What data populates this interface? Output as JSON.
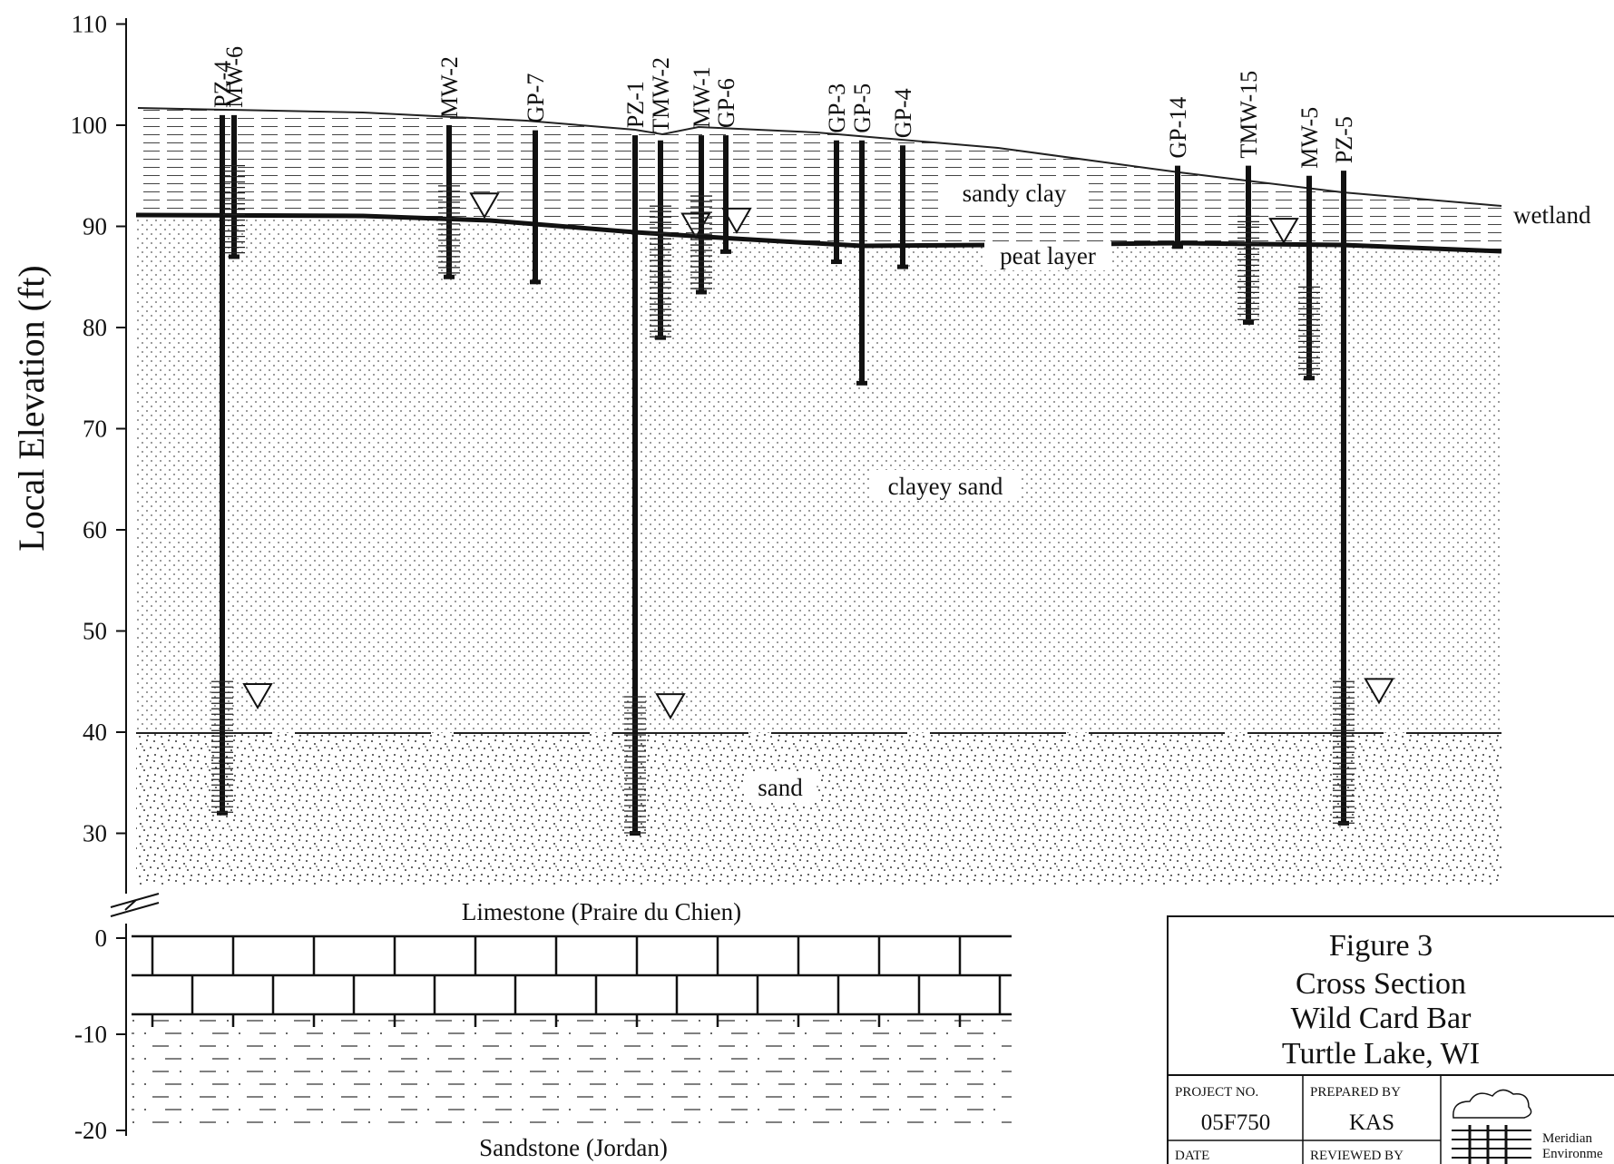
{
  "diagram": {
    "y_axis_label": "Local Elevation (ft)",
    "upper_ticks": [
      "110",
      "100",
      "90",
      "80",
      "70",
      "60",
      "50",
      "40",
      "30"
    ],
    "lower_ticks": [
      "0",
      "-10",
      "-20"
    ],
    "units": {
      "sandy_clay": "sandy clay",
      "peat_layer": "peat layer",
      "clayey_sand": "clayey sand",
      "sand": "sand",
      "wetland": "wetland",
      "limestone": "Limestone (Praire du Chien)",
      "sandstone": "Sandstone (Jordan)"
    },
    "wells": [
      {
        "id": "PZ-4",
        "top_elev": 101,
        "bottom_elev": 32,
        "screen_top": 45,
        "water_level": 43.5
      },
      {
        "id": "MW-6",
        "top_elev": 101,
        "bottom_elev": 87,
        "screen_top": 96
      },
      {
        "id": "MW-2",
        "top_elev": 100,
        "bottom_elev": 85,
        "screen_top": 94,
        "water_level": 92
      },
      {
        "id": "GP-7",
        "top_elev": 99.5,
        "bottom_elev": 84.5
      },
      {
        "id": "PZ-1",
        "top_elev": 99,
        "bottom_elev": 30,
        "screen_top": 43.5,
        "water_level": 42.5
      },
      {
        "id": "TMW-2",
        "top_elev": 98.5,
        "bottom_elev": 79,
        "screen_top": 92,
        "water_level": 90
      },
      {
        "id": "MW-1",
        "top_elev": 99,
        "bottom_elev": 83.5,
        "screen_top": 93,
        "water_level": 90.5
      },
      {
        "id": "GP-6",
        "top_elev": 99,
        "bottom_elev": 87.5
      },
      {
        "id": "GP-3",
        "top_elev": 98.5,
        "bottom_elev": 86.5
      },
      {
        "id": "GP-5",
        "top_elev": 98.5,
        "bottom_elev": 74.5
      },
      {
        "id": "GP-4",
        "top_elev": 98,
        "bottom_elev": 86
      },
      {
        "id": "GP-14",
        "top_elev": 96,
        "bottom_elev": 88
      },
      {
        "id": "TMW-15",
        "top_elev": 96,
        "bottom_elev": 80.5,
        "screen_top": 91,
        "water_level": 89.5
      },
      {
        "id": "MW-5",
        "top_elev": 95,
        "bottom_elev": 75,
        "screen_top": 84
      },
      {
        "id": "PZ-5",
        "top_elev": 95.5,
        "bottom_elev": 31,
        "screen_top": 45,
        "water_level": 44
      }
    ]
  },
  "title_block": {
    "title_lines": [
      "Figure 3",
      "Cross Section",
      "Wild Card Bar",
      "Turtle Lake, WI"
    ],
    "project_no_label": "PROJECT NO.",
    "project_no": "05F750",
    "prepared_by_label": "PREPARED BY",
    "prepared_by": "KAS",
    "date_label": "DATE",
    "reviewed_by_label": "REVIEWED BY",
    "company_line1": "Meridian",
    "company_line2": "Environme"
  },
  "colors": {
    "ink": "#111111",
    "paper": "#ffffff"
  }
}
